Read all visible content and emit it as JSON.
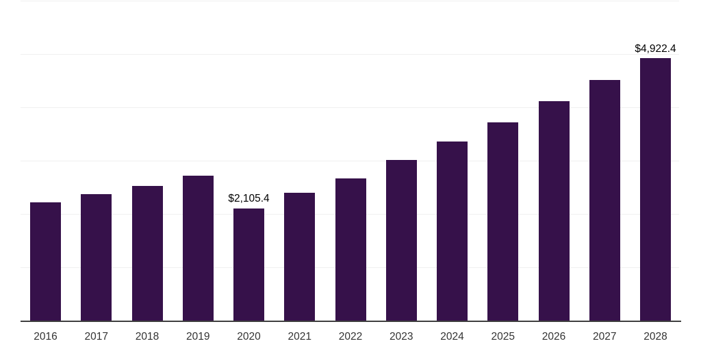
{
  "chart_data": {
    "type": "bar",
    "title": "",
    "xlabel": "",
    "ylabel": "",
    "categories": [
      "2016",
      "2017",
      "2018",
      "2019",
      "2020",
      "2021",
      "2022",
      "2023",
      "2024",
      "2025",
      "2026",
      "2027",
      "2028"
    ],
    "values": [
      2220,
      2370,
      2525,
      2720,
      2105.4,
      2400,
      2665,
      3010,
      3360,
      3720,
      4115,
      4510,
      4922.4
    ],
    "point_labels": [
      "",
      "",
      "",
      "",
      "$2,105.4",
      "",
      "",
      "",
      "",
      "",
      "",
      "",
      "$4,922.4"
    ],
    "ylim": [
      0,
      6000
    ],
    "gridline_step": 1000,
    "grid": true,
    "y_axis_tick_labels_visible": false,
    "legend_visible": false,
    "colors": {
      "bar": "#36114A",
      "gridline": "#F0F0F0",
      "axis_line": "#3F3F3F",
      "tick_label": "#333333",
      "point_label": "#000000",
      "background": "#FFFFFF"
    }
  }
}
